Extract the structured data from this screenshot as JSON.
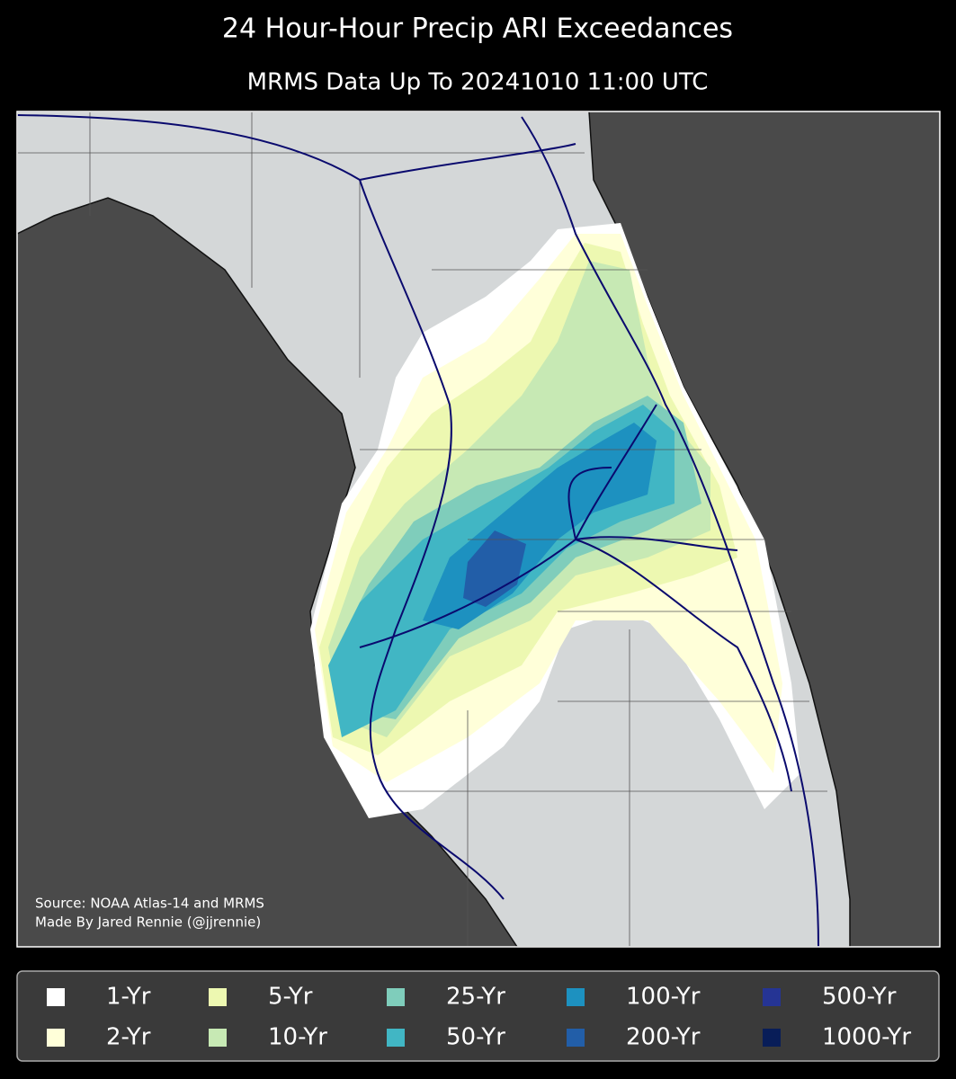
{
  "title": "24 Hour-Hour Precip ARI Exceedances",
  "subtitle": "MRMS Data Up To 20241010 11:00 UTC",
  "credits": [
    "Source: NOAA Atlas-14 and MRMS",
    "Made By Jared Rennie (@jjrennie)"
  ],
  "legend": {
    "items": [
      {
        "label": "1-Yr",
        "color": "#ffffff"
      },
      {
        "label": "2-Yr",
        "color": "#ffffd9"
      },
      {
        "label": "5-Yr",
        "color": "#edf8b1"
      },
      {
        "label": "10-Yr",
        "color": "#c7e9b4"
      },
      {
        "label": "25-Yr",
        "color": "#7fcdbb"
      },
      {
        "label": "50-Yr",
        "color": "#41b6c4"
      },
      {
        "label": "100-Yr",
        "color": "#1d91c0"
      },
      {
        "label": "200-Yr",
        "color": "#225ea8"
      },
      {
        "label": "500-Yr",
        "color": "#253494"
      },
      {
        "label": "1000-Yr",
        "color": "#081d58"
      }
    ]
  }
}
